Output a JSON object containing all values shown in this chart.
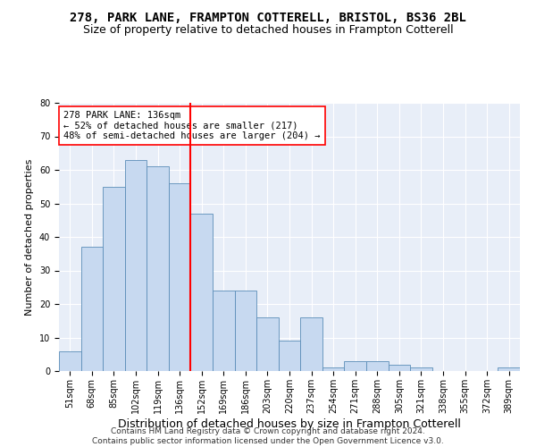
{
  "title1": "278, PARK LANE, FRAMPTON COTTERELL, BRISTOL, BS36 2BL",
  "title2": "Size of property relative to detached houses in Frampton Cotterell",
  "xlabel": "Distribution of detached houses by size in Frampton Cotterell",
  "ylabel": "Number of detached properties",
  "footer1": "Contains HM Land Registry data © Crown copyright and database right 2024.",
  "footer2": "Contains public sector information licensed under the Open Government Licence v3.0.",
  "categories": [
    "51sqm",
    "68sqm",
    "85sqm",
    "102sqm",
    "119sqm",
    "136sqm",
    "152sqm",
    "169sqm",
    "186sqm",
    "203sqm",
    "220sqm",
    "237sqm",
    "254sqm",
    "271sqm",
    "288sqm",
    "305sqm",
    "321sqm",
    "338sqm",
    "355sqm",
    "372sqm",
    "389sqm"
  ],
  "values": [
    6,
    37,
    55,
    63,
    61,
    56,
    47,
    24,
    24,
    16,
    9,
    16,
    1,
    3,
    3,
    2,
    1,
    0,
    0,
    0,
    1
  ],
  "bar_color": "#c7d9f0",
  "bar_edge_color": "#5b8db8",
  "vline_color": "red",
  "vline_x": 5.5,
  "ylim": [
    0,
    80
  ],
  "yticks": [
    0,
    10,
    20,
    30,
    40,
    50,
    60,
    70,
    80
  ],
  "background_color": "#e8eef8",
  "grid_color": "white",
  "annotation_text": "278 PARK LANE: 136sqm\n← 52% of detached houses are smaller (217)\n48% of semi-detached houses are larger (204) →",
  "annotation_box_color": "white",
  "annotation_box_edge_color": "red",
  "title1_fontsize": 10,
  "title2_fontsize": 9,
  "xlabel_fontsize": 9,
  "ylabel_fontsize": 8,
  "tick_fontsize": 7,
  "annotation_fontsize": 7.5,
  "footer_fontsize": 6.5
}
